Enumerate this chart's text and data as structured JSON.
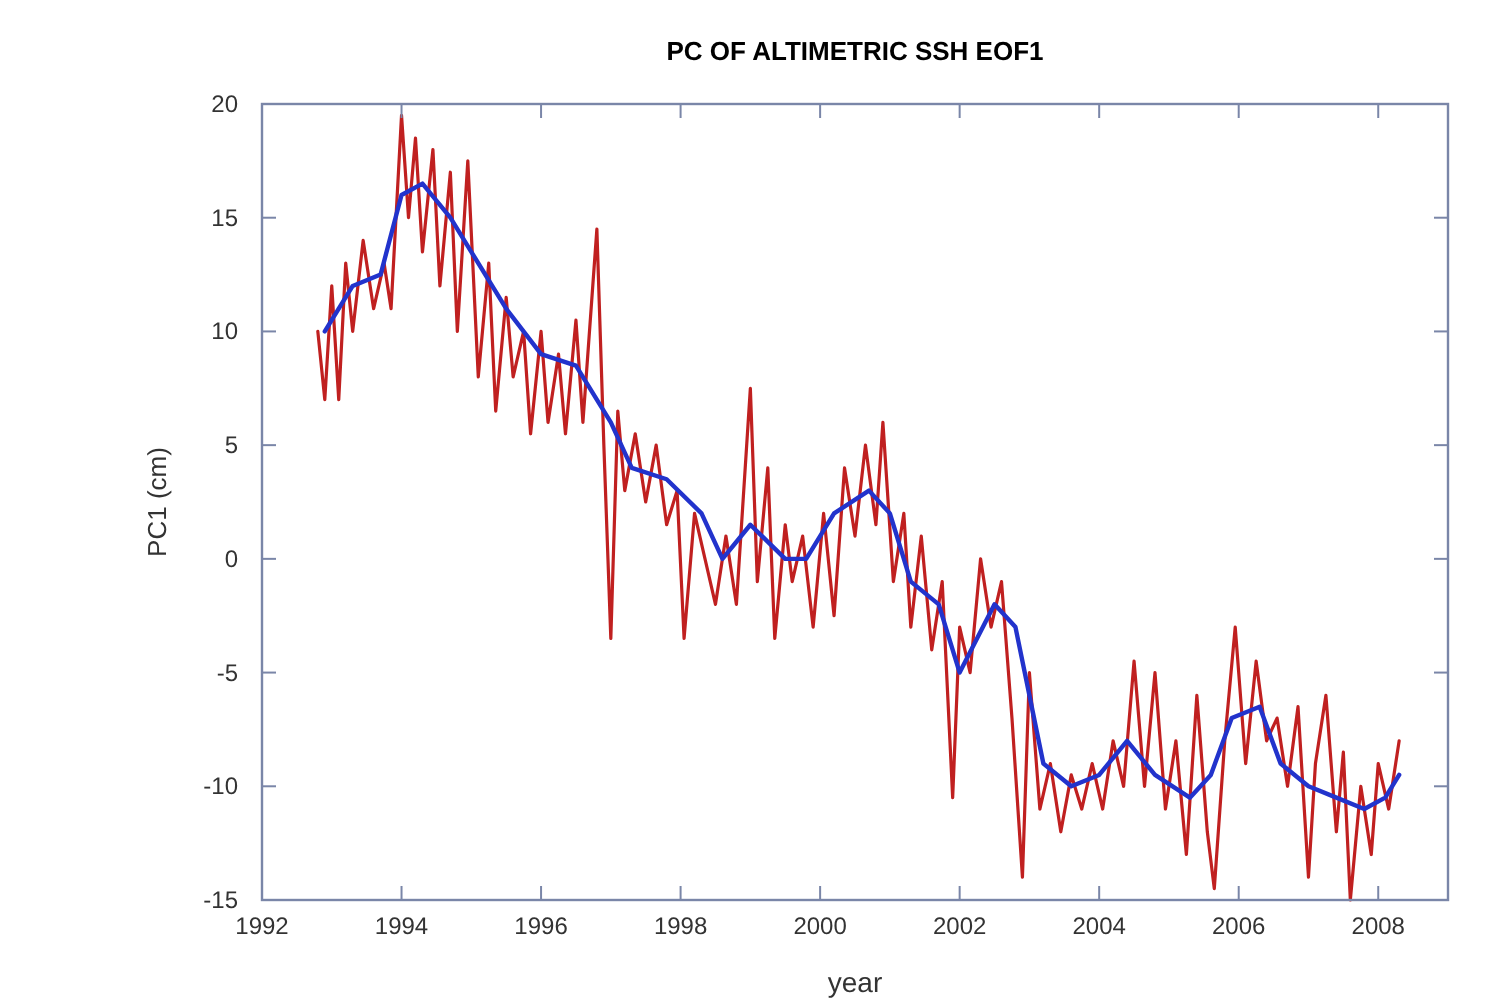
{
  "chart_data": {
    "type": "line",
    "title": "PC OF ALTIMETRIC SSH EOF1",
    "xlabel": "year",
    "ylabel": "PC1 (cm)",
    "xlim": [
      1992,
      2009
    ],
    "xticks": [
      1992,
      1994,
      1996,
      1998,
      2000,
      2002,
      2004,
      2006,
      2008
    ],
    "ylim": [
      -15,
      20
    ],
    "yticks": [
      -15,
      -10,
      -5,
      0,
      5,
      10,
      15,
      20
    ],
    "marker": "none",
    "line_style": "solid",
    "series": [
      {
        "color": "#c02020",
        "x": [
          1992.8,
          1992.9,
          1993.0,
          1993.1,
          1993.2,
          1993.3,
          1993.45,
          1993.6,
          1993.75,
          1993.85,
          1994.0,
          1994.1,
          1994.2,
          1994.3,
          1994.45,
          1994.55,
          1994.7,
          1994.8,
          1994.95,
          1995.1,
          1995.25,
          1995.35,
          1995.5,
          1995.6,
          1995.75,
          1995.85,
          1996.0,
          1996.1,
          1996.25,
          1996.35,
          1996.5,
          1996.6,
          1996.8,
          1996.9,
          1997.0,
          1997.1,
          1997.2,
          1997.35,
          1997.5,
          1997.65,
          1997.8,
          1997.95,
          1998.05,
          1998.2,
          1998.35,
          1998.5,
          1998.65,
          1998.8,
          1999.0,
          1999.1,
          1999.25,
          1999.35,
          1999.5,
          1999.6,
          1999.75,
          1999.9,
          2000.05,
          2000.2,
          2000.35,
          2000.5,
          2000.65,
          2000.8,
          2000.9,
          2001.05,
          2001.2,
          2001.3,
          2001.45,
          2001.6,
          2001.75,
          2001.9,
          2002.0,
          2002.15,
          2002.3,
          2002.45,
          2002.6,
          2002.75,
          2002.9,
          2003.0,
          2003.15,
          2003.3,
          2003.45,
          2003.6,
          2003.75,
          2003.9,
          2004.05,
          2004.2,
          2004.35,
          2004.5,
          2004.65,
          2004.8,
          2004.95,
          2005.1,
          2005.25,
          2005.4,
          2005.55,
          2005.65,
          2005.8,
          2005.95,
          2006.1,
          2006.25,
          2006.4,
          2006.55,
          2006.7,
          2006.85,
          2007.0,
          2007.1,
          2007.25,
          2007.4,
          2007.5,
          2007.6,
          2007.75,
          2007.9,
          2008.0,
          2008.15,
          2008.3
        ],
        "values": [
          10,
          7,
          12,
          7,
          13,
          10,
          14,
          11,
          13,
          11,
          19.5,
          15,
          18.5,
          13.5,
          18,
          12,
          17,
          10,
          17.5,
          8,
          13,
          6.5,
          11.5,
          8,
          10,
          5.5,
          10,
          6,
          9,
          5.5,
          10.5,
          6,
          14.5,
          5,
          -3.5,
          6.5,
          3,
          5.5,
          2.5,
          5,
          1.5,
          3,
          -3.5,
          2,
          0,
          -2,
          1,
          -2,
          7.5,
          -1,
          4,
          -3.5,
          1.5,
          -1,
          1,
          -3,
          2,
          -2.5,
          4,
          1,
          5,
          1.5,
          6,
          -1,
          2,
          -3,
          1,
          -4,
          -1,
          -10.5,
          -3,
          -5,
          0,
          -3,
          -1,
          -7,
          -14,
          -5,
          -11,
          -9,
          -12,
          -9.5,
          -11,
          -9,
          -11,
          -8,
          -10,
          -4.5,
          -10,
          -5,
          -11,
          -8,
          -13,
          -6,
          -12,
          -14.5,
          -8,
          -3,
          -9,
          -4.5,
          -8,
          -7,
          -10,
          -6.5,
          -14,
          -9,
          -6,
          -12,
          -8.5,
          -15,
          -10,
          -13,
          -9,
          -11,
          -8
        ]
      },
      {
        "color": "#2233cc",
        "x": [
          1992.9,
          1993.3,
          1993.7,
          1994.0,
          1994.3,
          1994.7,
          1995.0,
          1995.5,
          1996.0,
          1996.5,
          1997.0,
          1997.3,
          1997.8,
          1998.3,
          1998.6,
          1999.0,
          1999.5,
          1999.8,
          2000.2,
          2000.7,
          2001.0,
          2001.3,
          2001.7,
          2002.0,
          2002.5,
          2002.8,
          2003.2,
          2003.6,
          2004.0,
          2004.4,
          2004.8,
          2005.3,
          2005.6,
          2005.9,
          2006.3,
          2006.6,
          2007.0,
          2007.4,
          2007.8,
          2008.1,
          2008.3
        ],
        "values": [
          10,
          12,
          12.5,
          16,
          16.5,
          15,
          13.5,
          11,
          9,
          8.5,
          6,
          4,
          3.5,
          2,
          0,
          1.5,
          0,
          0,
          2,
          3,
          2,
          -1,
          -2,
          -5,
          -2,
          -3,
          -9,
          -10,
          -9.5,
          -8,
          -9.5,
          -10.5,
          -9.5,
          -7,
          -6.5,
          -9,
          -10,
          -10.5,
          -11,
          -10.5,
          -9.5
        ]
      }
    ]
  }
}
